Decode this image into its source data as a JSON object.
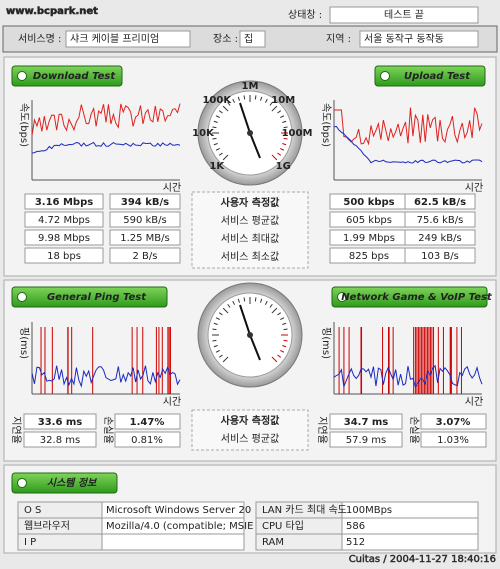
{
  "header": {
    "watermark": "www.bcpark.net",
    "status_label": "상태창 :",
    "status": "테스트 끝",
    "fields": [
      {
        "label": "서비스명 :",
        "value": "샤크 케이블 프리미엄"
      },
      {
        "label": "장소 :",
        "value": "집"
      },
      {
        "label": "지역 :",
        "value": "서울 동작구 동작동"
      }
    ]
  },
  "speed": {
    "download_button": "Download Test",
    "upload_button": "Upload Test",
    "y_label": "속도(bps)",
    "x_label": "시간",
    "gauge_labels": [
      "1K",
      "10K",
      "100K",
      "1M",
      "10M",
      "100M",
      "1G"
    ],
    "row_labels": [
      "사용자 측정값",
      "서비스 평균값",
      "서비스 최대값",
      "서비스 최소값"
    ],
    "download": [
      [
        "3.16 Mbps",
        "394 kB/s"
      ],
      [
        "4.72 Mbps",
        "590 kB/s"
      ],
      [
        "9.98 Mbps",
        "1.25 MB/s"
      ],
      [
        "18 bps",
        "2 B/s"
      ]
    ],
    "upload": [
      [
        "500 kbps",
        "62.5 kB/s"
      ],
      [
        "605 kbps",
        "75.6 kB/s"
      ],
      [
        "1.99 Mbps",
        "249 kB/s"
      ],
      [
        "825 bps",
        "103 B/s"
      ]
    ]
  },
  "ping": {
    "ping_button": "General Ping Test",
    "game_button": "Network Game & VoIP Test",
    "y_label": "핑(ms)",
    "x_label": "시간",
    "delay_label": "지연율",
    "loss_label": "손실율",
    "row_labels": [
      "사용자 측정값",
      "서비스 평균값"
    ],
    "ping": [
      [
        "33.6 ms",
        "1.47%"
      ],
      [
        "32.8 ms",
        "0.81%"
      ]
    ],
    "game": [
      [
        "34.7 ms",
        "3.07%"
      ],
      [
        "57.9 ms",
        "1.03%"
      ]
    ]
  },
  "system": {
    "button": "시스템 정보",
    "rows": [
      {
        "label": "O S",
        "value": "Microsoft Windows Server 20",
        "label2": "LAN 카드 최대 속도",
        "value2": "100MBps"
      },
      {
        "label": "웹브라우저",
        "value": "Mozilla/4.0 (compatible; MSIE",
        "label2": "CPU 타입",
        "value2": "586"
      },
      {
        "label": "I P",
        "label2": "RAM",
        "value2": "512"
      }
    ]
  },
  "footer": "Cuitas / 2004-11-27 18:40:16"
}
